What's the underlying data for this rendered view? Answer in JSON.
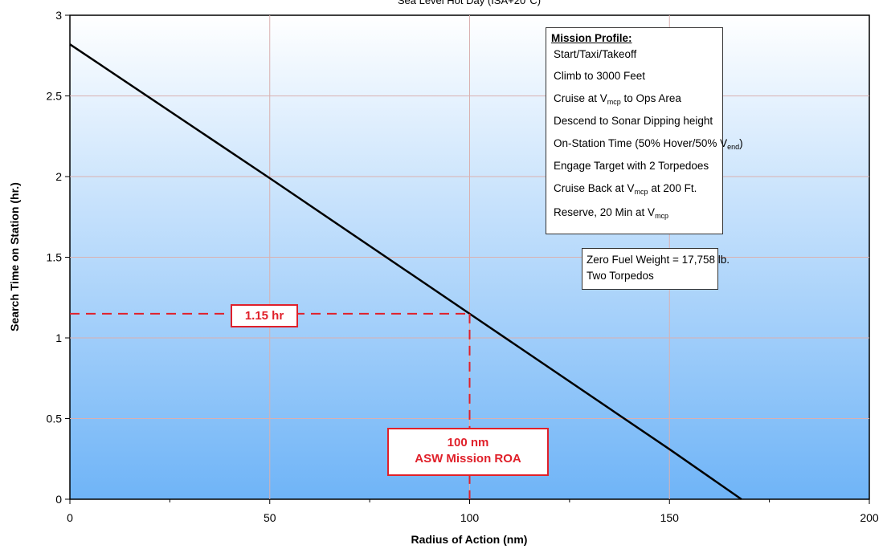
{
  "chart_data": {
    "type": "line",
    "subtitle": "Sea Level Hot Day (ISA+20°C)",
    "xlabel": "Radius of Action (nm)",
    "ylabel": "Search Time on Station (hr.)",
    "xlim": [
      0,
      200
    ],
    "ylim": [
      0,
      3
    ],
    "x_ticks": [
      0,
      50,
      100,
      150,
      200
    ],
    "y_ticks": [
      0,
      0.5,
      1,
      1.5,
      2,
      2.5,
      3
    ],
    "grid": true,
    "series": [
      {
        "x": [
          0,
          50,
          100,
          150,
          168
        ],
        "y": [
          2.82,
          1.99,
          1.15,
          0.31,
          0.0
        ]
      }
    ],
    "reference_point": {
      "x": 100,
      "y": 1.15
    },
    "colors": {
      "line": "#000000",
      "reference": "#e0202a",
      "grid": "#d9b0b0",
      "bg_top": "#ffffff",
      "bg_bottom": "#6fb4f7"
    },
    "annotations": {
      "time_label": "1.15 hr",
      "radius_label_1": "100 nm",
      "radius_label_2": "ASW Mission ROA",
      "mission_title": "Mission Profile:",
      "mission_lines": [
        "Start/Taxi/Takeoff",
        "Climb to 3000 Feet",
        "Cruise at V",
        "mcp",
        " to Ops Area",
        "Descend to Sonar Dipping height",
        "On-Station Time (50% Hover/50% V",
        "end",
        ")",
        "Engage Target with 2 Torpedoes",
        "Cruise Back at V",
        "mcp",
        " at 200 Ft.",
        "Reserve, 20 Min at V",
        "mcp"
      ],
      "weight_line_1": "Zero Fuel Weight = 17,758 lb.",
      "weight_line_2": "Two Torpedos"
    }
  }
}
